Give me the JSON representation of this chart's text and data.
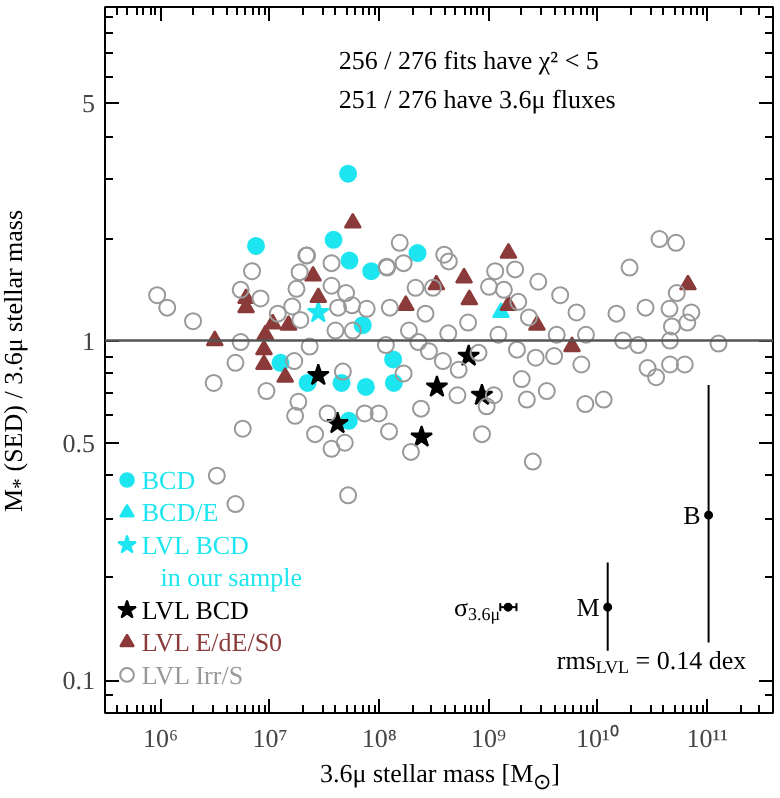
{
  "chart_data": {
    "type": "scatter",
    "log": "xy",
    "xlabel": "3.6μ stellar mass [M$_{⊙}$]",
    "ylabel": "M$_{*}$ (SED) / 3.6μ stellar mass",
    "xlim": [
      310000,
      400000000000
    ],
    "ylim": [
      0.08,
      9.6
    ],
    "xticks": [
      {
        "value": 1000000,
        "label": "10⁶"
      },
      {
        "value": 10000000,
        "label": "10⁷"
      },
      {
        "value": 100000000,
        "label": "10⁸"
      },
      {
        "value": 1000000000,
        "label": "10⁹"
      },
      {
        "value": 10000000000,
        "label": "10¹⁰"
      },
      {
        "value": 100000000000,
        "label": "10¹¹"
      }
    ],
    "yticks": [
      0.1,
      0.5,
      1,
      5
    ],
    "grid": false,
    "legend": "bottom left",
    "ref_lines": [
      {
        "axis": "y",
        "value": 1,
        "color": "#555555"
      }
    ],
    "annotations": [
      "256 / 276 fits have χ² < 5",
      "251 / 276 have 3.6μ fluxes",
      "rms$_{LVL}$ = 0.14 dex",
      {
        "text": "σ$_{3.6μ}$",
        "x": 1510000000,
        "y": 0.164
      },
      {
        "text": "M",
        "x": 12300000000,
        "y": 0.164
      },
      {
        "text": "B",
        "x": 103000000000,
        "y": 0.306
      }
    ],
    "series": [
      {
        "name": "BCD",
        "color": "#1ee6f0",
        "marker": "circle",
        "x": [
          51900000.0,
          7460000.0,
          38200000.0,
          53400000.0,
          224000000.0,
          84500000.0,
          70600000.0,
          12500000.0,
          22100000.0,
          45200000.0,
          75500000.0,
          136000000.0,
          134000000.0,
          52700000.0
        ],
        "values": [
          3.1,
          1.9,
          1.98,
          1.72,
          1.81,
          1.6,
          1.11,
          0.86,
          0.75,
          0.75,
          0.73,
          0.75,
          0.88,
          0.58
        ]
      },
      {
        "name": "BCD/E",
        "color": "#1ee6f0",
        "marker": "triangle",
        "x": [
          1300000000.0
        ],
        "values": [
          1.21
        ]
      },
      {
        "name": "LVL BCD\nin our sample",
        "color": "#1ee6f0",
        "marker": "star",
        "x": [
          27700000.0
        ],
        "values": [
          1.21
        ]
      },
      {
        "name": "LVL BCD",
        "color": "#000000",
        "marker": "star",
        "x": [
          27700000.0,
          41500000.0,
          244000000.0,
          337000000.0,
          658000000.0,
          870000000.0
        ],
        "values": [
          0.79,
          0.57,
          0.52,
          0.73,
          0.9,
          0.69
        ]
      },
      {
        "name": "LVL E/dE/S0",
        "color": "#8b3a3a",
        "marker": "triangle",
        "x": [
          57300000.0,
          24800000.0,
          597000000.0,
          1520000000.0,
          6050000.0,
          6050000.0,
          27700000.0,
          10600000.0,
          14800000.0,
          3130000.0,
          9080000.0,
          8820000.0,
          8820000.0,
          13800000.0,
          175000000.0,
          333000000.0,
          667000000.0,
          1520000000.0,
          2770000000.0,
          5800000000.0,
          66700000000.0
        ],
        "values": [
          2.22,
          1.55,
          1.53,
          1.81,
          1.33,
          1.25,
          1.34,
          1.12,
          1.11,
          1.0,
          1.04,
          0.94,
          0.85,
          0.78,
          1.27,
          1.46,
          1.32,
          1.27,
          1.11,
          0.96,
          1.46
        ]
      },
      {
        "name": "LVL Irr/S",
        "color": "#999999",
        "marker": "circle",
        "x": [
          154000000.0,
          21500000.0,
          36600000.0,
          6860000.0,
          18700000.0,
          118000000.0,
          167000000.0,
          393000000.0,
          433000000.0,
          1150000000.0,
          1750000000.0,
          19500000000.0,
          36600000000.0,
          51900000000.0,
          930000.0,
          1150000.0,
          1980000.0,
          5400000.0,
          8200000.0,
          11800000.0,
          21900000.0,
          17500000.0,
          16000000.0,
          19000000.0,
          36600000.0,
          49700000.0,
          42000000.0,
          56400000.0,
          39800000.0,
          57300000.0,
          76800000.0,
          117000000.0,
          125000000.0,
          215000000.0,
          265000000.0,
          4840000.0,
          5400000.0,
          3060000.0,
          5640000.0,
          9300000.0,
          18200000.0,
          17000000.0,
          25900000.0,
          33700000.0,
          36600000.0,
          48400000.0,
          51900000.0,
          3270000.0,
          4840000.0,
          46500000.0,
          73600000.0,
          99000000.0,
          123000000.0,
          195000000.0,
          241000000.0,
          167000000.0,
          228000000.0,
          115000000.0,
          23100000.0,
          16700000.0,
          2850000000.0,
          4520000000.0,
          1010000000.0,
          1380000000.0,
          1870000000.0,
          2340000000.0,
          4200000000.0,
          6380000000.0,
          7780000000.0,
          14800000000.0,
          27300000000.0,
          52700000000.0,
          45200000000.0,
          71600000000.0,
          47600000000.0,
          65800000000.0,
          17000000000.0,
          23400000000.0,
          45700000000.0,
          127000000000.0,
          28500000000.0,
          34100000000.0,
          45700000000.0,
          62400000000.0,
          1820000000.0,
          2700000000.0,
          3980000000.0,
          7060000000.0,
          2010000000.0,
          3410000000.0,
          7680000000.0,
          11300000000.0,
          2240000000.0,
          1120000000.0,
          960000000.0,
          519000000.0,
          870000000.0,
          2540000000.0,
          428000000.0,
          650000000.0,
          310000000.0,
          285000000.0,
          382000000.0,
          187000000.0,
          810000000.0,
          1230000000.0,
          533000000.0
        ],
        "values": [
          1.94,
          1.78,
          1.69,
          1.6,
          1.59,
          1.64,
          1.69,
          1.79,
          1.71,
          1.6,
          1.62,
          1.64,
          1.99,
          1.94,
          1.36,
          1.25,
          1.14,
          1.41,
          1.33,
          1.2,
          1.78,
          1.42,
          1.26,
          1.15,
          1.45,
          1.38,
          1.25,
          1.27,
          1.07,
          1.07,
          1.24,
          1.65,
          1.25,
          1.43,
          1.2,
          0.86,
          0.99,
          0.75,
          0.55,
          0.71,
          0.66,
          0.6,
          0.53,
          0.61,
          0.48,
          0.5,
          0.35,
          0.4,
          0.33,
          0.81,
          0.61,
          0.61,
          0.54,
          0.47,
          0.63,
          0.8,
          0.99,
          0.97,
          0.96,
          0.87,
          1.49,
          1.36,
          1.44,
          1.41,
          1.3,
          1.17,
          1.04,
          1.21,
          1.04,
          1.2,
          1.25,
          1.38,
          1.24,
          1.21,
          1.1,
          1.13,
          1.0,
          0.97,
          1.0,
          0.98,
          0.83,
          0.78,
          0.85,
          0.85,
          0.94,
          0.89,
          0.9,
          0.85,
          0.77,
          0.71,
          0.65,
          0.67,
          0.67,
          0.69,
          0.64,
          0.69,
          0.53,
          0.44,
          1.05,
          1.13,
          1.43,
          0.93,
          0.87,
          1.07,
          0.92,
          1.04,
          0.82
        ]
      },
      {
        "color": "#000000",
        "marker": "circle",
        "x": [
          1510000000.0,
          12300000000.0,
          103000000000.0
        ],
        "values": [
          0.164,
          0.164,
          0.306
        ],
        "errors": [
          null,
          [
            0.122,
            0.222
          ],
          [
            0.129,
            0.74
          ]
        ],
        "xerrors": [
          [
            1280000000.0,
            1800000000.0
          ],
          null,
          null
        ]
      }
    ]
  }
}
